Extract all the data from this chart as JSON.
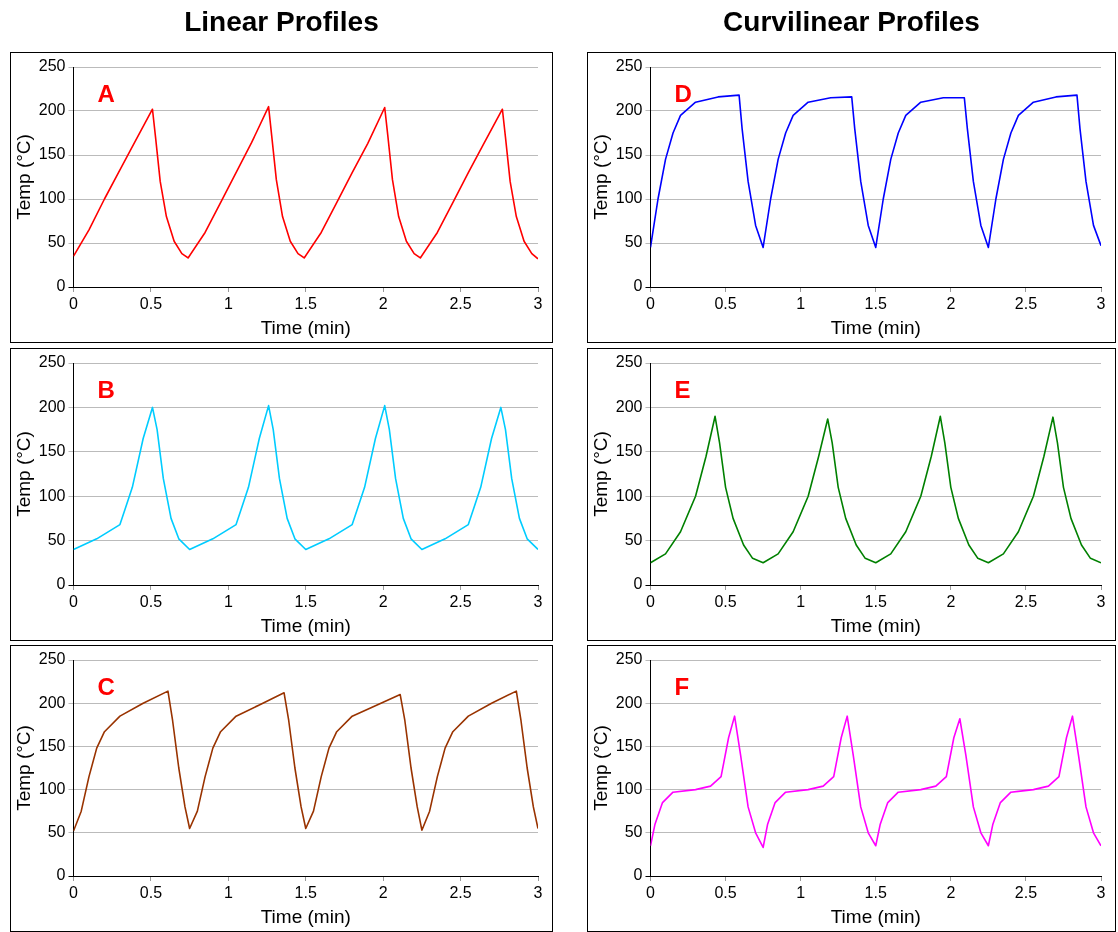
{
  "chart_data": [
    {
      "type": "line",
      "title": "Linear Profiles",
      "xlabel": "Time (min)",
      "ylabel": "Temp (°C)",
      "annotations": [
        "A"
      ],
      "xlim": [
        0,
        3
      ],
      "xticks": [
        0,
        0.5,
        1,
        1.5,
        2,
        2.5,
        3
      ],
      "ylim": [
        0,
        250
      ],
      "yticks": [
        0,
        50,
        100,
        150,
        200,
        250
      ],
      "grid": "y",
      "legend": false,
      "marker": "none",
      "series": [
        {
          "color": "#ff0000",
          "x": [
            0,
            0.1,
            0.2,
            0.3,
            0.4,
            0.51,
            0.53,
            0.56,
            0.6,
            0.65,
            0.7,
            0.74,
            0.85,
            0.95,
            1.05,
            1.15,
            1.26,
            1.28,
            1.31,
            1.35,
            1.4,
            1.45,
            1.49,
            1.6,
            1.7,
            1.8,
            1.9,
            2.01,
            2.03,
            2.06,
            2.1,
            2.15,
            2.2,
            2.24,
            2.35,
            2.45,
            2.55,
            2.65,
            2.77,
            2.79,
            2.82,
            2.86,
            2.91,
            2.96,
            3.0
          ],
          "values": [
            35,
            65,
            100,
            133,
            166,
            202,
            170,
            120,
            80,
            52,
            38,
            33,
            62,
            96,
            130,
            164,
            205,
            172,
            122,
            80,
            52,
            38,
            33,
            62,
            96,
            130,
            163,
            204,
            172,
            122,
            80,
            52,
            38,
            33,
            62,
            96,
            130,
            163,
            202,
            170,
            120,
            80,
            52,
            38,
            32
          ]
        }
      ]
    },
    {
      "type": "line",
      "title": "Curvilinear Profiles",
      "xlabel": "Time (min)",
      "ylabel": "Temp (°C)",
      "annotations": [
        "D"
      ],
      "xlim": [
        0,
        3
      ],
      "xticks": [
        0,
        0.5,
        1,
        1.5,
        2,
        2.5,
        3
      ],
      "ylim": [
        0,
        250
      ],
      "yticks": [
        0,
        50,
        100,
        150,
        200,
        250
      ],
      "grid": "y",
      "legend": false,
      "marker": "none",
      "series": [
        {
          "color": "#0000ff",
          "x": [
            0,
            0.05,
            0.1,
            0.15,
            0.2,
            0.3,
            0.45,
            0.59,
            0.61,
            0.65,
            0.7,
            0.75,
            0.8,
            0.85,
            0.9,
            0.95,
            1.05,
            1.2,
            1.34,
            1.36,
            1.4,
            1.45,
            1.5,
            1.55,
            1.6,
            1.65,
            1.7,
            1.8,
            1.95,
            2.09,
            2.11,
            2.15,
            2.2,
            2.25,
            2.3,
            2.35,
            2.4,
            2.45,
            2.55,
            2.7,
            2.84,
            2.86,
            2.9,
            2.95,
            3.0
          ],
          "values": [
            45,
            100,
            145,
            175,
            195,
            210,
            216,
            218,
            180,
            120,
            70,
            45,
            100,
            145,
            175,
            195,
            210,
            215,
            216,
            180,
            120,
            70,
            45,
            100,
            145,
            175,
            195,
            210,
            215,
            215,
            180,
            120,
            70,
            45,
            100,
            145,
            175,
            195,
            210,
            216,
            218,
            180,
            120,
            70,
            47
          ]
        }
      ]
    },
    {
      "type": "line",
      "xlabel": "Time (min)",
      "ylabel": "Temp (°C)",
      "annotations": [
        "B"
      ],
      "xlim": [
        0,
        3
      ],
      "xticks": [
        0,
        0.5,
        1,
        1.5,
        2,
        2.5,
        3
      ],
      "ylim": [
        0,
        250
      ],
      "yticks": [
        0,
        50,
        100,
        150,
        200,
        250
      ],
      "grid": "y",
      "legend": false,
      "marker": "none",
      "series": [
        {
          "color": "#00ccff",
          "x": [
            0,
            0.15,
            0.3,
            0.38,
            0.45,
            0.51,
            0.54,
            0.58,
            0.63,
            0.68,
            0.75,
            0.9,
            1.05,
            1.13,
            1.2,
            1.26,
            1.29,
            1.33,
            1.38,
            1.43,
            1.5,
            1.65,
            1.8,
            1.88,
            1.95,
            2.01,
            2.04,
            2.08,
            2.13,
            2.18,
            2.25,
            2.4,
            2.55,
            2.63,
            2.7,
            2.76,
            2.79,
            2.83,
            2.88,
            2.93,
            3.0
          ],
          "values": [
            40,
            52,
            68,
            110,
            165,
            200,
            175,
            120,
            75,
            52,
            40,
            52,
            68,
            110,
            165,
            202,
            175,
            120,
            75,
            52,
            40,
            52,
            68,
            110,
            165,
            202,
            175,
            120,
            75,
            52,
            40,
            52,
            68,
            110,
            165,
            200,
            175,
            120,
            75,
            52,
            40
          ]
        }
      ]
    },
    {
      "type": "line",
      "xlabel": "Time (min)",
      "ylabel": "Temp (°C)",
      "annotations": [
        "E"
      ],
      "xlim": [
        0,
        3
      ],
      "xticks": [
        0,
        0.5,
        1,
        1.5,
        2,
        2.5,
        3
      ],
      "ylim": [
        0,
        250
      ],
      "yticks": [
        0,
        50,
        100,
        150,
        200,
        250
      ],
      "grid": "y",
      "legend": false,
      "marker": "none",
      "series": [
        {
          "color": "#008000",
          "x": [
            0,
            0.1,
            0.2,
            0.3,
            0.37,
            0.43,
            0.46,
            0.5,
            0.55,
            0.62,
            0.68,
            0.75,
            0.85,
            0.95,
            1.05,
            1.12,
            1.18,
            1.21,
            1.25,
            1.3,
            1.37,
            1.43,
            1.5,
            1.6,
            1.7,
            1.8,
            1.87,
            1.93,
            1.96,
            2.0,
            2.05,
            2.12,
            2.18,
            2.25,
            2.35,
            2.45,
            2.55,
            2.62,
            2.68,
            2.71,
            2.75,
            2.8,
            2.87,
            2.93,
            3.0
          ],
          "values": [
            25,
            35,
            60,
            100,
            145,
            190,
            160,
            110,
            75,
            45,
            30,
            25,
            35,
            60,
            100,
            145,
            187,
            160,
            110,
            75,
            45,
            30,
            25,
            35,
            60,
            100,
            145,
            190,
            160,
            110,
            75,
            45,
            30,
            25,
            35,
            60,
            100,
            145,
            189,
            160,
            110,
            75,
            45,
            30,
            25
          ]
        }
      ]
    },
    {
      "type": "line",
      "xlabel": "Time (min)",
      "ylabel": "Temp (°C)",
      "annotations": [
        "C"
      ],
      "xlim": [
        0,
        3
      ],
      "xticks": [
        0,
        0.5,
        1,
        1.5,
        2,
        2.5,
        3
      ],
      "ylim": [
        0,
        250
      ],
      "yticks": [
        0,
        50,
        100,
        150,
        200,
        250
      ],
      "grid": "y",
      "legend": false,
      "marker": "none",
      "series": [
        {
          "color": "#993300",
          "x": [
            0,
            0.05,
            0.1,
            0.15,
            0.2,
            0.3,
            0.45,
            0.61,
            0.64,
            0.68,
            0.72,
            0.75,
            0.8,
            0.85,
            0.9,
            0.95,
            1.05,
            1.2,
            1.36,
            1.39,
            1.43,
            1.47,
            1.5,
            1.55,
            1.6,
            1.65,
            1.7,
            1.8,
            1.95,
            2.11,
            2.14,
            2.18,
            2.22,
            2.25,
            2.3,
            2.35,
            2.4,
            2.45,
            2.55,
            2.7,
            2.86,
            2.89,
            2.93,
            2.97,
            3.0
          ],
          "values": [
            52,
            75,
            115,
            148,
            167,
            185,
            200,
            214,
            180,
            125,
            80,
            55,
            75,
            115,
            148,
            167,
            185,
            198,
            212,
            180,
            125,
            80,
            55,
            75,
            115,
            148,
            167,
            185,
            197,
            210,
            180,
            125,
            80,
            53,
            75,
            115,
            148,
            167,
            185,
            200,
            214,
            180,
            125,
            80,
            55
          ]
        }
      ]
    },
    {
      "type": "line",
      "xlabel": "Time (min)",
      "ylabel": "Temp (°C)",
      "annotations": [
        "F"
      ],
      "xlim": [
        0,
        3
      ],
      "xticks": [
        0,
        0.5,
        1,
        1.5,
        2,
        2.5,
        3
      ],
      "ylim": [
        0,
        250
      ],
      "yticks": [
        0,
        50,
        100,
        150,
        200,
        250
      ],
      "grid": "y",
      "legend": false,
      "marker": "none",
      "series": [
        {
          "color": "#ff00ff",
          "x": [
            0,
            0.03,
            0.08,
            0.15,
            0.3,
            0.4,
            0.47,
            0.52,
            0.56,
            0.6,
            0.65,
            0.7,
            0.75,
            0.78,
            0.83,
            0.9,
            1.05,
            1.15,
            1.22,
            1.27,
            1.31,
            1.35,
            1.4,
            1.45,
            1.5,
            1.53,
            1.58,
            1.65,
            1.8,
            1.9,
            1.97,
            2.02,
            2.06,
            2.1,
            2.15,
            2.2,
            2.25,
            2.28,
            2.33,
            2.4,
            2.55,
            2.65,
            2.72,
            2.77,
            2.81,
            2.85,
            2.9,
            2.95,
            3.0
          ],
          "values": [
            35,
            60,
            85,
            97,
            100,
            104,
            115,
            160,
            185,
            140,
            80,
            50,
            33,
            60,
            85,
            97,
            100,
            104,
            115,
            160,
            185,
            140,
            80,
            50,
            35,
            60,
            85,
            97,
            100,
            104,
            115,
            160,
            182,
            140,
            80,
            50,
            35,
            60,
            85,
            97,
            100,
            104,
            115,
            160,
            185,
            140,
            80,
            50,
            35
          ]
        }
      ]
    }
  ]
}
